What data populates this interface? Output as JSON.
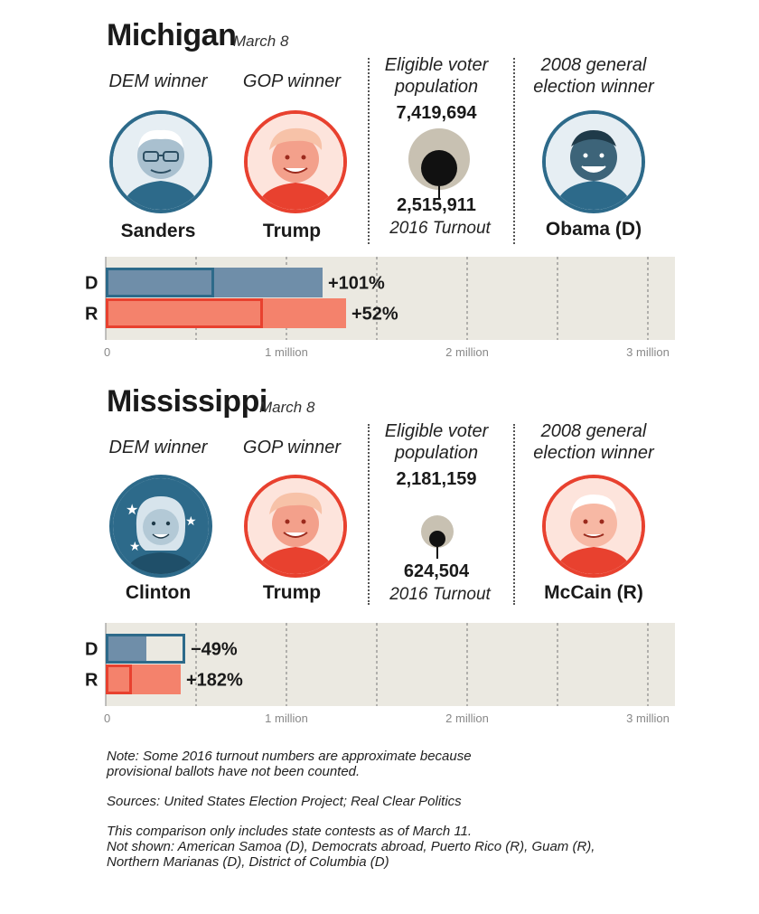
{
  "labels": {
    "dem_winner": "DEM winner",
    "gop_winner": "GOP winner",
    "eligible_line1": "Eligible voter",
    "eligible_line2": "population",
    "general_line1": "2008 general",
    "general_line2": "election winner",
    "turnout": "2016 Turnout"
  },
  "colors": {
    "dem": "#2d6a8a",
    "dem_bar": "#6f8ea9",
    "rep": "#e8412f",
    "rep_bar": "#f4826c",
    "chart_bg": "#ebe9e1",
    "eligible_circle": "#c8c1b2",
    "turnout_circle": "#111111"
  },
  "michigan": {
    "state": "Michigan",
    "date": "March 8",
    "dem_winner": "Sanders",
    "gop_winner": "Trump",
    "eligible": "7,419,694",
    "turnout": "2,515,911",
    "general_winner": "Obama (D)",
    "portraits": {
      "dem": "sanders-portrait",
      "gop": "trump-portrait",
      "general": "obama-portrait"
    }
  },
  "mississippi": {
    "state": "Mississippi",
    "date": "March 8",
    "dem_winner": "Clinton",
    "gop_winner": "Trump",
    "eligible": "2,181,159",
    "turnout": "624,504",
    "general_winner": "McCain (R)",
    "portraits": {
      "dem": "clinton-portrait",
      "gop": "trump-portrait",
      "general": "mccain-portrait"
    }
  },
  "chart_data": [
    {
      "type": "bar",
      "state": "Michigan",
      "categories": [
        "D",
        "R"
      ],
      "series": [
        {
          "name": "2016",
          "values": [
            1200000,
            1330000
          ]
        },
        {
          "name": "2008",
          "values": [
            600000,
            870000
          ]
        }
      ],
      "change_labels": [
        "+101%",
        "+52%"
      ],
      "xlim": [
        0,
        3000000
      ],
      "tick_values": [
        0,
        1000000,
        2000000,
        3000000
      ],
      "tick_labels": [
        "0",
        "1 million",
        "2 million",
        "3 million"
      ]
    },
    {
      "type": "bar",
      "state": "Mississippi",
      "categories": [
        "D",
        "R"
      ],
      "series": [
        {
          "name": "2016",
          "values": [
            225000,
            415000
          ]
        },
        {
          "name": "2008",
          "values": [
            440000,
            145000
          ]
        }
      ],
      "change_labels": [
        "−49%",
        "+182%"
      ],
      "xlim": [
        0,
        3000000
      ],
      "tick_values": [
        0,
        1000000,
        2000000,
        3000000
      ],
      "tick_labels": [
        "0",
        "1 million",
        "2 million",
        "3 million"
      ]
    }
  ],
  "notes": {
    "note1": "Note: Some 2016 turnout numbers are approximate because",
    "note2": "provisional ballots have not been counted.",
    "sources": "Sources: United States Election Project; Real Clear Politics",
    "scope1": "This comparison only includes state contests as of March 11.",
    "scope2": "Not shown: American Samoa (D), Democrats abroad, Puerto Rico (R), Guam (R),",
    "scope3": "Northern Marianas (D), District of Columbia (D)"
  }
}
